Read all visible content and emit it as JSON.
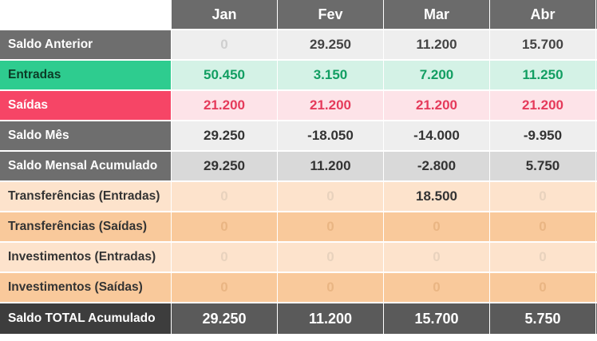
{
  "columns": [
    "Jan",
    "Fev",
    "Mar",
    "Abr"
  ],
  "rows": [
    {
      "key": "anterior",
      "label": "Saldo Anterior",
      "values": [
        "0",
        "29.250",
        "11.200",
        "15.700"
      ]
    },
    {
      "key": "entradas",
      "label": "Entradas",
      "values": [
        "50.450",
        "3.150",
        "7.200",
        "11.250"
      ]
    },
    {
      "key": "saidas",
      "label": "Saídas",
      "values": [
        "21.200",
        "21.200",
        "21.200",
        "21.200"
      ]
    },
    {
      "key": "mes",
      "label": "Saldo Mês",
      "values": [
        "29.250",
        "-18.050",
        "-14.000",
        "-9.950"
      ]
    },
    {
      "key": "acum",
      "label": "Saldo Mensal Acumulado",
      "values": [
        "29.250",
        "11.200",
        "-2.800",
        "5.750"
      ]
    },
    {
      "key": "tin",
      "label": "Transferências (Entradas)",
      "values": [
        "0",
        "0",
        "18.500",
        "0"
      ]
    },
    {
      "key": "tout",
      "label": "Transferências (Saídas)",
      "values": [
        "0",
        "0",
        "0",
        "0"
      ]
    },
    {
      "key": "iin",
      "label": "Investimentos (Entradas)",
      "values": [
        "0",
        "0",
        "0",
        "0"
      ]
    },
    {
      "key": "iout",
      "label": "Investimentos (Saídas)",
      "values": [
        "0",
        "0",
        "0",
        "0"
      ]
    },
    {
      "key": "total",
      "label": "Saldo TOTAL Acumulado",
      "values": [
        "29.250",
        "11.200",
        "15.700",
        "5.750"
      ]
    }
  ],
  "colors": {
    "header_bg": "#6b6b6b",
    "entradas": "#2ecc8f",
    "saidas": "#f64566",
    "transfer_light": "#fde3cc",
    "transfer_dark": "#f9c99b",
    "total_bg": "#3d3d3d"
  }
}
